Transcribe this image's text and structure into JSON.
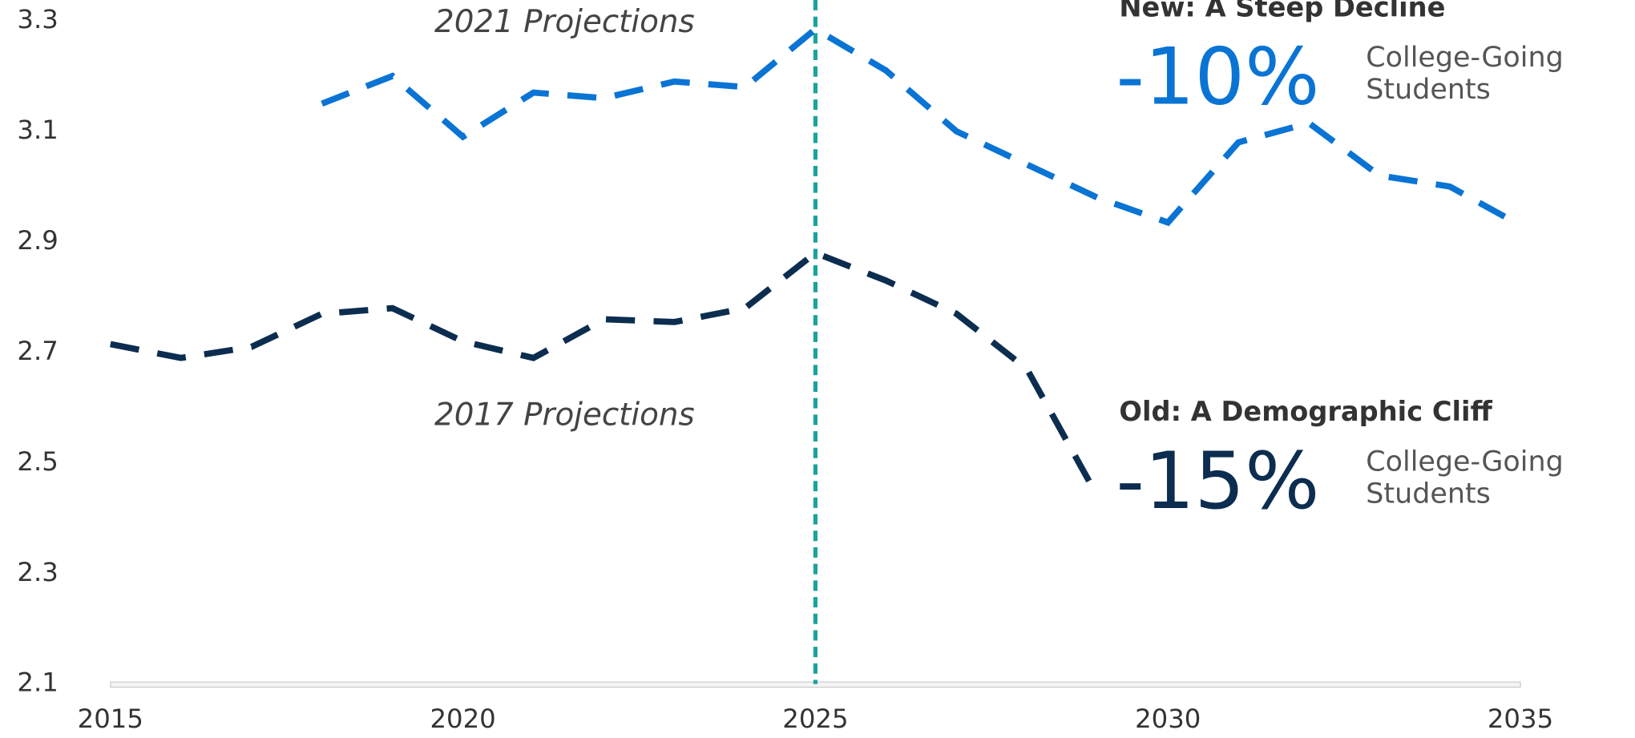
{
  "chart_data": {
    "type": "line",
    "x": [
      2015,
      2016,
      2017,
      2018,
      2019,
      2020,
      2021,
      2022,
      2023,
      2024,
      2025,
      2026,
      2027,
      2028,
      2029,
      2030,
      2031,
      2032,
      2033,
      2034,
      2035
    ],
    "series": [
      {
        "name": "2021 Projections",
        "color": "#0a74d4",
        "values": [
          null,
          null,
          null,
          3.15,
          3.2,
          3.09,
          3.17,
          3.16,
          3.19,
          3.18,
          3.285,
          3.21,
          3.1,
          3.04,
          2.98,
          2.935,
          3.08,
          3.115,
          3.02,
          3.0,
          2.93
        ]
      },
      {
        "name": "2017 Projections",
        "color": "#0c2d4f",
        "values": [
          2.715,
          2.69,
          2.71,
          2.77,
          2.78,
          2.72,
          2.69,
          2.76,
          2.755,
          2.78,
          2.88,
          2.83,
          2.77,
          2.67,
          2.44,
          null,
          null,
          null,
          null,
          null,
          null
        ]
      }
    ],
    "xlim": [
      2015,
      2035
    ],
    "xticks": [
      2015,
      2020,
      2025,
      2030,
      2035
    ],
    "ylim": [
      2.1,
      3.3
    ],
    "yticks": [
      2.1,
      2.3,
      2.5,
      2.7,
      2.9,
      3.1,
      3.3
    ],
    "reference_x": 2025,
    "reference_color": "#1aa39a",
    "callouts": [
      {
        "heading": "New: A Steep Decline",
        "figure": "-10%",
        "note": [
          "College-Going",
          "Students"
        ],
        "color": "#0a74d4"
      },
      {
        "heading": "Old: A Demographic Cliff",
        "figure": "-15%",
        "note": [
          "College-Going",
          "Students"
        ],
        "color": "#0c2d4f"
      }
    ]
  }
}
